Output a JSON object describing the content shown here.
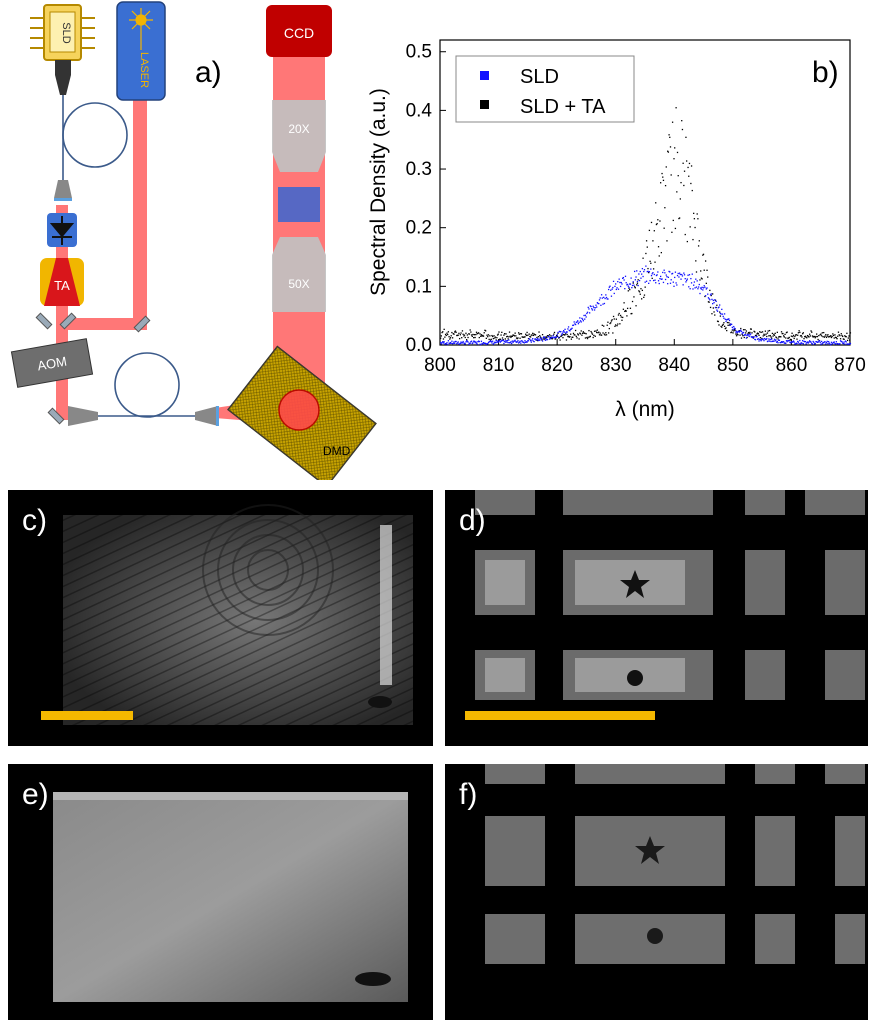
{
  "figure": {
    "panel_a": {
      "label": "a)",
      "components": {
        "sld": "SLD",
        "laser": "LASER",
        "ta": "TA",
        "aom": "AOM",
        "ccd": "CCD",
        "obj_top": "20X",
        "obj_bottom": "50X",
        "dmd": "DMD"
      }
    },
    "panel_b": {
      "label": "b)"
    },
    "panel_c": {
      "label": "c)"
    },
    "panel_d": {
      "label": "d)"
    },
    "panel_e": {
      "label": "e)"
    },
    "panel_f": {
      "label": "f)"
    }
  },
  "chart_data": {
    "type": "scatter",
    "xlabel": "λ (nm)",
    "ylabel": "Spectral Density (a.u.)",
    "xlim": [
      800,
      870
    ],
    "ylim": [
      0,
      0.52
    ],
    "xticks": [
      "800",
      "810",
      "820",
      "830",
      "840",
      "850",
      "860",
      "870"
    ],
    "yticks": [
      "0.0",
      "0.1",
      "0.2",
      "0.3",
      "0.4",
      "0.5"
    ],
    "legend_position": "top-left",
    "series": [
      {
        "name": "SLD",
        "color": "#1010ff",
        "x": [
          800,
          805,
          810,
          815,
          818,
          820,
          822,
          824,
          826,
          828,
          830,
          832,
          834,
          836,
          838,
          840,
          842,
          844,
          846,
          848,
          850,
          852,
          855,
          860,
          865,
          870
        ],
        "y": [
          0.005,
          0.005,
          0.006,
          0.008,
          0.012,
          0.018,
          0.03,
          0.045,
          0.065,
          0.085,
          0.1,
          0.11,
          0.118,
          0.12,
          0.118,
          0.115,
          0.112,
          0.105,
          0.085,
          0.055,
          0.03,
          0.018,
          0.01,
          0.006,
          0.005,
          0.005
        ]
      },
      {
        "name": "SLD + TA",
        "color": "#000000",
        "x": [
          800,
          805,
          810,
          815,
          820,
          825,
          828,
          830,
          832,
          834,
          836,
          837,
          838,
          839,
          840,
          840.5,
          841,
          842,
          843,
          844,
          845,
          846,
          848,
          850,
          855,
          860,
          865,
          870
        ],
        "y": [
          0.02,
          0.018,
          0.017,
          0.016,
          0.016,
          0.018,
          0.025,
          0.04,
          0.07,
          0.11,
          0.16,
          0.19,
          0.23,
          0.27,
          0.3,
          0.32,
          0.3,
          0.26,
          0.22,
          0.17,
          0.12,
          0.08,
          0.04,
          0.025,
          0.018,
          0.017,
          0.017,
          0.017
        ]
      }
    ]
  }
}
